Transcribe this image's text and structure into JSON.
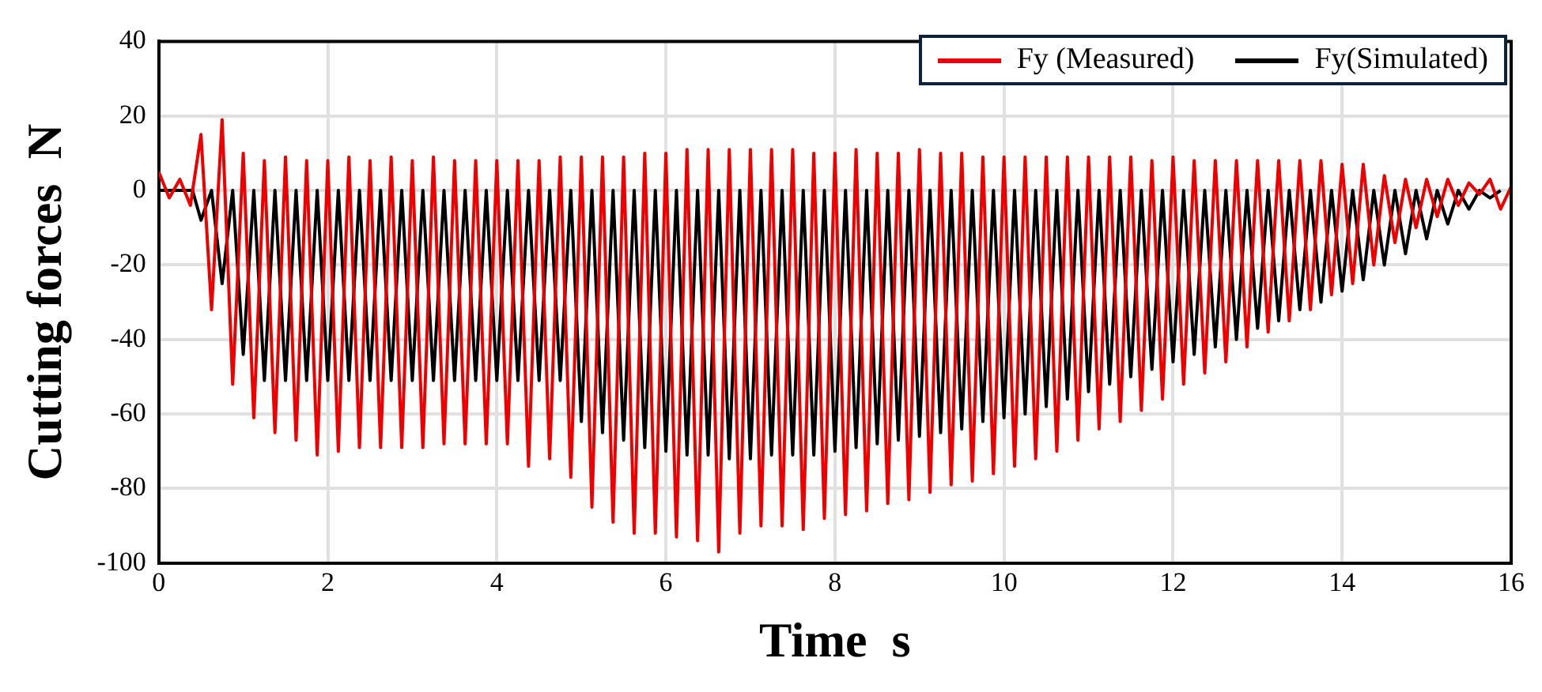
{
  "chart_data": {
    "type": "line",
    "xlabel": "Time  s",
    "ylabel": "Cutting forces  N",
    "xlim": [
      0,
      16
    ],
    "xticks": [
      0,
      2,
      4,
      6,
      8,
      10,
      12,
      14,
      16
    ],
    "ylim": [
      -100,
      40
    ],
    "yticks": [
      -100,
      -80,
      -60,
      -40,
      -20,
      0,
      20,
      40
    ],
    "grid": true,
    "legend": "top right",
    "marker": "none",
    "series": [
      {
        "name": "Fy (Measured)",
        "color": "#ee0000",
        "x": [
          0,
          0.125,
          0.25,
          0.375,
          0.5,
          0.625,
          0.75,
          0.875,
          1,
          1.125,
          1.25,
          1.375,
          1.5,
          1.625,
          1.75,
          1.875,
          2,
          2.125,
          2.25,
          2.375,
          2.5,
          2.625,
          2.75,
          2.875,
          3,
          3.125,
          3.25,
          3.375,
          3.5,
          3.625,
          3.75,
          3.875,
          4,
          4.125,
          4.25,
          4.375,
          4.5,
          4.625,
          4.75,
          4.875,
          5,
          5.125,
          5.25,
          5.375,
          5.5,
          5.625,
          5.75,
          5.875,
          6,
          6.125,
          6.25,
          6.375,
          6.5,
          6.625,
          6.75,
          6.875,
          7,
          7.125,
          7.25,
          7.375,
          7.5,
          7.625,
          7.75,
          7.875,
          8,
          8.125,
          8.25,
          8.375,
          8.5,
          8.625,
          8.75,
          8.875,
          9,
          9.125,
          9.25,
          9.375,
          9.5,
          9.625,
          9.75,
          9.875,
          10,
          10.125,
          10.25,
          10.375,
          10.5,
          10.625,
          10.75,
          10.875,
          11,
          11.125,
          11.25,
          11.375,
          11.5,
          11.625,
          11.75,
          11.875,
          12,
          12.125,
          12.25,
          12.375,
          12.5,
          12.625,
          12.75,
          12.875,
          13,
          13.125,
          13.25,
          13.375,
          13.5,
          13.625,
          13.75,
          13.875,
          14,
          14.125,
          14.25,
          14.375,
          14.5,
          14.625,
          14.75,
          14.875,
          15,
          15.125,
          15.25,
          15.375,
          15.5,
          15.625,
          15.75,
          15.875,
          16
        ],
        "values": [
          5,
          -2,
          3,
          -4,
          15,
          -32,
          19,
          -52,
          10,
          -61,
          8,
          -65,
          9,
          -67,
          8,
          -71,
          8,
          -70,
          9,
          -69,
          8,
          -69,
          9,
          -69,
          8,
          -69,
          9,
          -68,
          8,
          -68,
          8,
          -68,
          8,
          -68,
          8,
          -74,
          8,
          -72,
          9,
          -77,
          9,
          -85,
          9,
          -89,
          9,
          -92,
          10,
          -92,
          10,
          -93,
          11,
          -94,
          11,
          -97,
          11,
          -92,
          11,
          -90,
          11,
          -90,
          11,
          -91,
          10,
          -88,
          10,
          -87,
          11,
          -86,
          10,
          -84,
          10,
          -83,
          11,
          -81,
          10,
          -79,
          10,
          -78,
          9,
          -76,
          9,
          -74,
          9,
          -72,
          9,
          -70,
          9,
          -67,
          9,
          -64,
          9,
          -62,
          9,
          -59,
          8,
          -56,
          9,
          -52,
          8,
          -49,
          8,
          -46,
          8,
          -42,
          8,
          -38,
          8,
          -35,
          8,
          -32,
          8,
          -28,
          7,
          -25,
          7,
          -20,
          4,
          -14,
          3,
          -10,
          3,
          -7,
          3,
          -4,
          2,
          -1,
          3,
          -5,
          1
        ]
      },
      {
        "name": "Fy(Simulated)",
        "color": "#000000",
        "x": [
          0,
          0.4,
          0.5,
          0.625,
          0.75,
          0.875,
          1,
          1.125,
          1.25,
          1.375,
          1.5,
          1.625,
          1.75,
          1.875,
          2,
          2.125,
          2.25,
          2.375,
          2.5,
          2.625,
          2.75,
          2.875,
          3,
          3.125,
          3.25,
          3.375,
          3.5,
          3.625,
          3.75,
          3.875,
          4,
          4.125,
          4.25,
          4.375,
          4.5,
          4.625,
          4.75,
          4.875,
          5,
          5.125,
          5.25,
          5.375,
          5.5,
          5.625,
          5.75,
          5.875,
          6,
          6.125,
          6.25,
          6.375,
          6.5,
          6.625,
          6.75,
          6.875,
          7,
          7.125,
          7.25,
          7.375,
          7.5,
          7.625,
          7.75,
          7.875,
          8,
          8.125,
          8.25,
          8.375,
          8.5,
          8.625,
          8.75,
          8.875,
          9,
          9.125,
          9.25,
          9.375,
          9.5,
          9.625,
          9.75,
          9.875,
          10,
          10.125,
          10.25,
          10.375,
          10.5,
          10.625,
          10.75,
          10.875,
          11,
          11.125,
          11.25,
          11.375,
          11.5,
          11.625,
          11.75,
          11.875,
          12,
          12.125,
          12.25,
          12.375,
          12.5,
          12.625,
          12.75,
          12.875,
          13,
          13.125,
          13.25,
          13.375,
          13.5,
          13.625,
          13.75,
          13.875,
          14,
          14.125,
          14.25,
          14.375,
          14.5,
          14.625,
          14.75,
          14.875,
          15,
          15.125,
          15.25,
          15.375,
          15.5,
          15.625,
          15.75,
          15.875
        ],
        "values": [
          0,
          0,
          -8,
          0,
          -25,
          0,
          -44,
          0,
          -51,
          0,
          -51,
          0,
          -51,
          0,
          -51,
          0,
          -51,
          0,
          -51,
          0,
          -51,
          0,
          -51,
          0,
          -51,
          0,
          -51,
          0,
          -51,
          0,
          -51,
          0,
          -51,
          0,
          -51,
          0,
          -51,
          0,
          -62,
          0,
          -65,
          0,
          -67,
          0,
          -69,
          0,
          -70,
          0,
          -71,
          0,
          -71,
          0,
          -72,
          0,
          -72,
          0,
          -71,
          0,
          -71,
          0,
          -71,
          0,
          -70,
          0,
          -69,
          0,
          -68,
          0,
          -67,
          0,
          -66,
          0,
          -65,
          0,
          -64,
          0,
          -62,
          0,
          -61,
          0,
          -60,
          0,
          -58,
          0,
          -56,
          0,
          -54,
          0,
          -52,
          0,
          -50,
          0,
          -48,
          0,
          -46,
          0,
          -44,
          0,
          -42,
          0,
          -40,
          0,
          -37,
          0,
          -35,
          0,
          -32,
          0,
          -30,
          0,
          -27,
          0,
          -24,
          0,
          -20,
          0,
          -17,
          0,
          -13,
          0,
          -9,
          0,
          -5,
          0,
          -2,
          0
        ]
      }
    ]
  }
}
